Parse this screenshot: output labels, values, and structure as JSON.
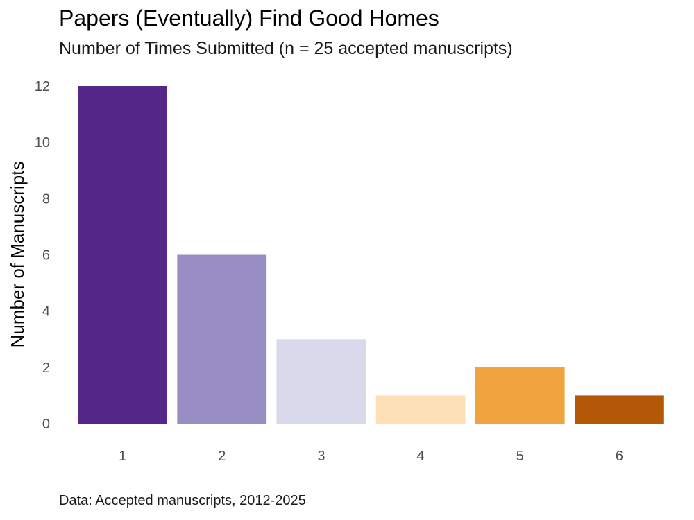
{
  "chart_data": {
    "type": "bar",
    "title": "Papers (Eventually) Find Good Homes",
    "subtitle": "Number of Times Submitted (n = 25 accepted manuscripts)",
    "caption": "Data: Accepted manuscripts, 2012-2025",
    "xlabel": "",
    "ylabel": "Number of Manuscripts",
    "categories": [
      "1",
      "2",
      "3",
      "4",
      "5",
      "6"
    ],
    "values": [
      12,
      6,
      3,
      1,
      2,
      1
    ],
    "colors": [
      "#542788",
      "#998ec3",
      "#d8daeb",
      "#fee0b6",
      "#f1a340",
      "#b35806"
    ],
    "ylim": [
      0,
      12
    ],
    "yticks": [
      0,
      2,
      4,
      6,
      8,
      10,
      12
    ],
    "grid": false,
    "legend": "none"
  }
}
